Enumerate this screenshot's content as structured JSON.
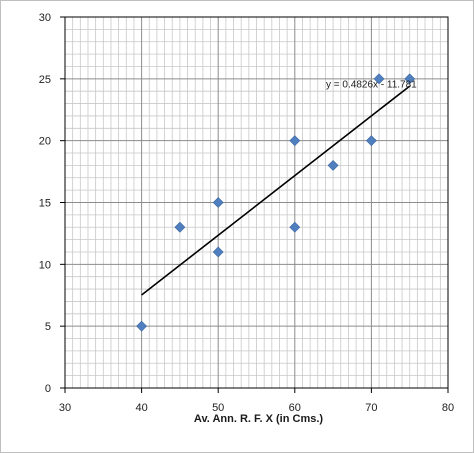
{
  "chart_data": {
    "type": "scatter",
    "title": "",
    "xlabel": "Av. Ann. R. F. X (in Cms.)",
    "ylabel": "",
    "xlim": [
      30,
      80
    ],
    "ylim": [
      0,
      30
    ],
    "x_ticks": [
      30,
      40,
      50,
      60,
      70,
      80
    ],
    "y_ticks": [
      0,
      5,
      10,
      15,
      20,
      25,
      30
    ],
    "x_tick_labels": [
      "30",
      "40",
      "50",
      "60",
      "70",
      "80"
    ],
    "y_tick_labels": [
      "0",
      "5",
      "10",
      "15",
      "20",
      "25",
      "30"
    ],
    "grid": true,
    "minor_grid_step": 1,
    "marker": "diamond",
    "marker_color": "#4f7fbf",
    "series": [
      {
        "points": [
          {
            "x": 40,
            "y": 5
          },
          {
            "x": 45,
            "y": 13
          },
          {
            "x": 50,
            "y": 15
          },
          {
            "x": 50,
            "y": 11
          },
          {
            "x": 60,
            "y": 20
          },
          {
            "x": 60,
            "y": 13
          },
          {
            "x": 65,
            "y": 18
          },
          {
            "x": 70,
            "y": 20
          },
          {
            "x": 71,
            "y": 25
          },
          {
            "x": 75,
            "y": 25
          }
        ]
      }
    ],
    "trendline": {
      "slope": 0.4826,
      "intercept": -11.781,
      "x_range": [
        40,
        75
      ],
      "color": "#000000",
      "equation_label": "y = 0.4826x - 11.781",
      "equation_position": {
        "x": 70,
        "y": 24.3
      }
    }
  }
}
